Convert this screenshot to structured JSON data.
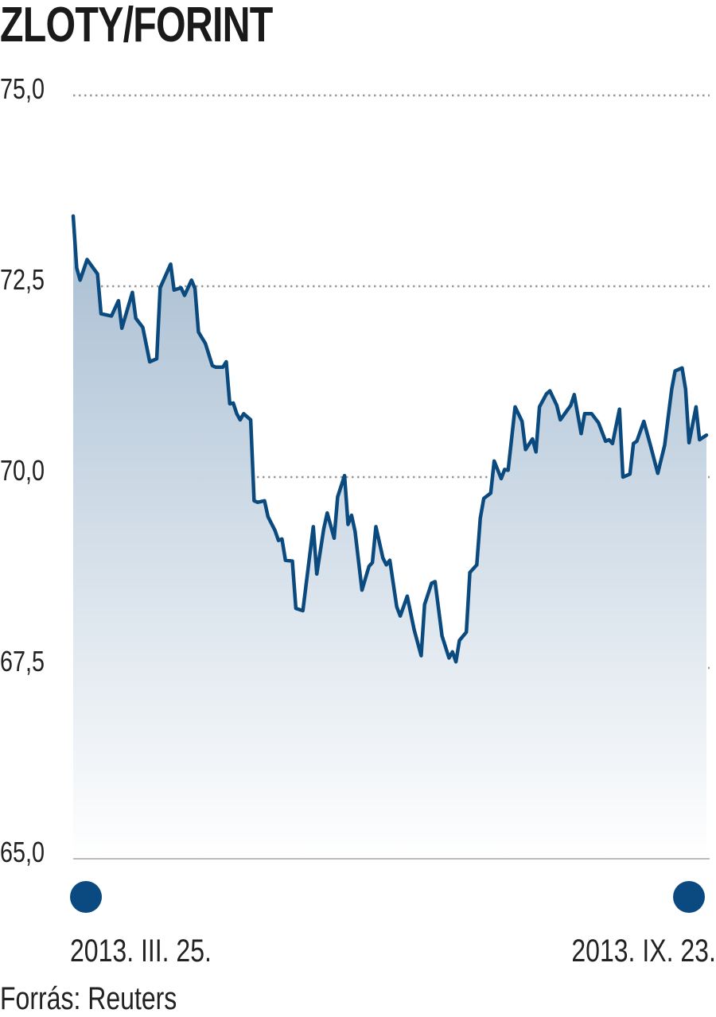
{
  "chart_data": {
    "type": "area",
    "title": "ZLOTY/FORINT",
    "xlabel": "",
    "ylabel": "",
    "ylim": [
      65.0,
      75.0
    ],
    "yticks": [
      "65,0",
      "67,5",
      "70,0",
      "72,5",
      "75,0"
    ],
    "ytick_values": [
      65.0,
      67.5,
      70.0,
      72.5,
      75.0
    ],
    "grid": "horizontal dotted",
    "x_start_label": "2013. III. 25.",
    "x_end_label": "2013. IX. 23.",
    "xlim": [
      "2013-03-25",
      "2013-09-23"
    ],
    "source": "Forrás: Reuters",
    "colors": {
      "line": "#0b4a7e",
      "fill_top": "#a7bdd2",
      "fill_bottom": "#ffffff",
      "marker": "#0b4a80"
    },
    "series": [
      {
        "points": [
          [
            "2013-03-25",
            73.42
          ],
          [
            "2013-03-26",
            72.74
          ],
          [
            "2013-03-27",
            72.58
          ],
          [
            "2013-03-29",
            72.85
          ],
          [
            "2013-04-01",
            72.66
          ],
          [
            "2013-04-02",
            72.14
          ],
          [
            "2013-04-05",
            72.11
          ],
          [
            "2013-04-07",
            72.31
          ],
          [
            "2013-04-08",
            71.95
          ],
          [
            "2013-04-11",
            72.42
          ],
          [
            "2013-04-12",
            72.08
          ],
          [
            "2013-04-14",
            71.96
          ],
          [
            "2013-04-16",
            71.51
          ],
          [
            "2013-04-18",
            71.55
          ],
          [
            "2013-04-19",
            72.48
          ],
          [
            "2013-04-22",
            72.79
          ],
          [
            "2013-04-23",
            72.45
          ],
          [
            "2013-04-25",
            72.48
          ],
          [
            "2013-04-26",
            72.38
          ],
          [
            "2013-04-28",
            72.58
          ],
          [
            "2013-04-29",
            72.47
          ],
          [
            "2013-04-30",
            71.9
          ],
          [
            "2013-05-02",
            71.75
          ],
          [
            "2013-05-04",
            71.46
          ],
          [
            "2013-05-05",
            71.44
          ],
          [
            "2013-05-07",
            71.44
          ],
          [
            "2013-05-08",
            71.51
          ],
          [
            "2013-05-09",
            70.96
          ],
          [
            "2013-05-10",
            70.97
          ],
          [
            "2013-05-11",
            70.83
          ],
          [
            "2013-05-12",
            70.75
          ],
          [
            "2013-05-13",
            70.83
          ],
          [
            "2013-05-15",
            70.75
          ],
          [
            "2013-05-16",
            69.69
          ],
          [
            "2013-05-17",
            69.67
          ],
          [
            "2013-05-19",
            69.69
          ],
          [
            "2013-05-20",
            69.48
          ],
          [
            "2013-05-22",
            69.3
          ],
          [
            "2013-05-23",
            69.17
          ],
          [
            "2013-05-24",
            69.19
          ],
          [
            "2013-05-25",
            68.91
          ],
          [
            "2013-05-27",
            68.9
          ],
          [
            "2013-05-28",
            68.28
          ],
          [
            "2013-05-30",
            68.25
          ],
          [
            "2013-06-02",
            69.35
          ],
          [
            "2013-06-03",
            68.73
          ],
          [
            "2013-06-05",
            69.32
          ],
          [
            "2013-06-06",
            69.53
          ],
          [
            "2013-06-08",
            69.2
          ],
          [
            "2013-06-09",
            69.74
          ],
          [
            "2013-06-11",
            70.02
          ],
          [
            "2013-06-12",
            69.38
          ],
          [
            "2013-06-13",
            69.5
          ],
          [
            "2013-06-14",
            69.29
          ],
          [
            "2013-06-16",
            68.52
          ],
          [
            "2013-06-18",
            68.83
          ],
          [
            "2013-06-19",
            68.88
          ],
          [
            "2013-06-20",
            69.35
          ],
          [
            "2013-06-22",
            68.94
          ],
          [
            "2013-06-23",
            68.85
          ],
          [
            "2013-06-24",
            68.91
          ],
          [
            "2013-06-26",
            68.3
          ],
          [
            "2013-06-27",
            68.18
          ],
          [
            "2013-06-29",
            68.44
          ],
          [
            "2013-07-01",
            68.0
          ],
          [
            "2013-07-03",
            67.66
          ],
          [
            "2013-07-04",
            68.33
          ],
          [
            "2013-07-06",
            68.61
          ],
          [
            "2013-07-07",
            68.63
          ],
          [
            "2013-07-09",
            67.92
          ],
          [
            "2013-07-11",
            67.63
          ],
          [
            "2013-07-12",
            67.71
          ],
          [
            "2013-07-13",
            67.58
          ],
          [
            "2013-07-14",
            67.86
          ],
          [
            "2013-07-16",
            67.97
          ],
          [
            "2013-07-17",
            68.75
          ],
          [
            "2013-07-19",
            68.85
          ],
          [
            "2013-07-20",
            69.46
          ],
          [
            "2013-07-21",
            69.72
          ],
          [
            "2013-07-23",
            69.79
          ],
          [
            "2013-07-24",
            70.21
          ],
          [
            "2013-07-26",
            69.98
          ],
          [
            "2013-07-27",
            70.1
          ],
          [
            "2013-07-28",
            70.09
          ],
          [
            "2013-07-30",
            70.92
          ],
          [
            "2013-08-01",
            70.73
          ],
          [
            "2013-08-02",
            70.36
          ],
          [
            "2013-08-04",
            70.5
          ],
          [
            "2013-08-05",
            70.33
          ],
          [
            "2013-08-06",
            70.92
          ],
          [
            "2013-08-08",
            71.09
          ],
          [
            "2013-08-09",
            71.13
          ],
          [
            "2013-08-11",
            70.94
          ],
          [
            "2013-08-12",
            70.75
          ],
          [
            "2013-08-15",
            70.94
          ],
          [
            "2013-08-16",
            71.08
          ],
          [
            "2013-08-18",
            70.57
          ],
          [
            "2013-08-19",
            70.83
          ],
          [
            "2013-08-21",
            70.83
          ],
          [
            "2013-08-23",
            70.71
          ],
          [
            "2013-08-25",
            70.47
          ],
          [
            "2013-08-26",
            70.49
          ],
          [
            "2013-08-27",
            70.44
          ],
          [
            "2013-08-29",
            70.89
          ],
          [
            "2013-08-30",
            70.0
          ],
          [
            "2013-09-01",
            70.04
          ],
          [
            "2013-09-02",
            70.44
          ],
          [
            "2013-09-03",
            70.47
          ],
          [
            "2013-09-05",
            70.73
          ],
          [
            "2013-09-07",
            70.4
          ],
          [
            "2013-09-09",
            70.05
          ],
          [
            "2013-09-11",
            70.42
          ],
          [
            "2013-09-13",
            71.15
          ],
          [
            "2013-09-14",
            71.39
          ],
          [
            "2013-09-16",
            71.43
          ],
          [
            "2013-09-17",
            71.15
          ],
          [
            "2013-09-18",
            70.45
          ],
          [
            "2013-09-20",
            70.92
          ],
          [
            "2013-09-21",
            70.49
          ],
          [
            "2013-09-23",
            70.55
          ]
        ]
      }
    ]
  }
}
